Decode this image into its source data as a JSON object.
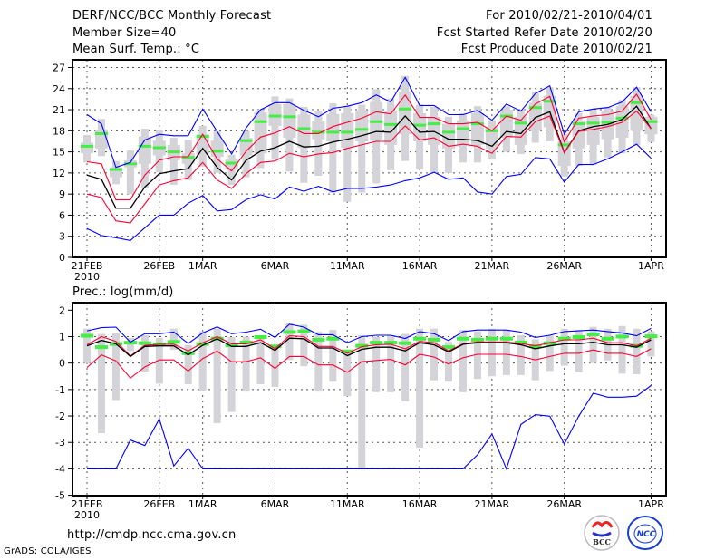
{
  "header": {
    "title": "DERF/NCC/BCC Monthly Forecast",
    "member_size": "Member Size=40",
    "variable": "Mean Surf. Temp.: °C",
    "period": "For 2010/02/21-2010/04/01",
    "started": "Fcst Started Refer Date 2010/02/20",
    "produced": "Fcst Produced Date 2010/02/21"
  },
  "footer": {
    "url": "http://cmdp.ncc.cma.gov.cn",
    "credit": "GrADS: COLA/IGES",
    "logos": [
      "BCC",
      "NCC"
    ]
  },
  "colors": {
    "max_min": "#0000ff",
    "spread": "#ff0033",
    "mean": "#000000",
    "marker": "#44ee44",
    "range": "#d3d3d8"
  },
  "chart_data": [
    {
      "type": "line",
      "title": "Mean Surf. Temp.: °C",
      "ylabel": "",
      "ylim": [
        0,
        27
      ],
      "yticks": [
        "0",
        "3",
        "6",
        "9",
        "12",
        "15",
        "18",
        "21",
        "24",
        "27"
      ],
      "yticks_values": [
        0,
        3,
        6,
        9,
        12,
        15,
        18,
        21,
        24,
        27
      ],
      "xticks": [
        {
          "i": 0,
          "label": "21FEB"
        },
        {
          "i": 5,
          "label": "26FEB"
        },
        {
          "i": 8,
          "label": "1MAR"
        },
        {
          "i": 13,
          "label": "6MAR"
        },
        {
          "i": 18,
          "label": "11MAR"
        },
        {
          "i": 23,
          "label": "16MAR"
        },
        {
          "i": 28,
          "label": "21MAR"
        },
        {
          "i": 33,
          "label": "26MAR"
        },
        {
          "i": 39,
          "label": "1APR"
        }
      ],
      "year_label": "2010",
      "n_days": 40,
      "grid": true,
      "series": [
        {
          "name": "max",
          "color": "#0000ff",
          "values": [
            20.3,
            19.0,
            12.8,
            13.5,
            16.7,
            17.5,
            17.3,
            17.3,
            21.1,
            17.9,
            14.7,
            18.4,
            21.0,
            22.0,
            22.0,
            20.9,
            20.0,
            21.2,
            21.5,
            22.0,
            23.1,
            22.1,
            25.6,
            21.6,
            21.6,
            20.3,
            20.3,
            20.9,
            19.5,
            21.8,
            20.8,
            23.3,
            24.4,
            17.5,
            20.7,
            21.1,
            21.3,
            22.1,
            24.2,
            20.7
          ]
        },
        {
          "name": "upper",
          "color": "#ff0033",
          "values": [
            13.6,
            13.3,
            8.2,
            8.2,
            11.7,
            13.8,
            14.3,
            14.3,
            17.5,
            14.0,
            12.3,
            15.1,
            17.1,
            17.7,
            18.6,
            17.6,
            17.6,
            18.6,
            19.2,
            19.8,
            20.7,
            20.4,
            23.1,
            19.9,
            19.9,
            19.0,
            19.0,
            19.2,
            18.0,
            20.1,
            19.5,
            21.8,
            22.9,
            16.4,
            19.8,
            20.1,
            20.3,
            20.8,
            23.2,
            19.6
          ]
        },
        {
          "name": "mean",
          "color": "#000000",
          "values": [
            11.7,
            11.1,
            7.0,
            7.0,
            10.0,
            11.9,
            12.3,
            12.6,
            15.5,
            12.8,
            11.0,
            13.8,
            15.1,
            15.6,
            16.5,
            15.7,
            15.8,
            16.4,
            16.8,
            17.3,
            17.9,
            17.8,
            20.1,
            17.8,
            17.9,
            16.8,
            16.8,
            16.6,
            15.8,
            17.9,
            17.6,
            19.9,
            20.7,
            14.9,
            18.0,
            18.6,
            18.9,
            19.6,
            21.5,
            18.3
          ]
        },
        {
          "name": "lower",
          "color": "#ff0033",
          "values": [
            9.0,
            8.5,
            5.2,
            4.9,
            7.6,
            10.3,
            10.9,
            11.3,
            13.5,
            11.0,
            9.8,
            11.9,
            13.5,
            13.7,
            14.8,
            14.3,
            14.7,
            14.9,
            15.5,
            16.0,
            16.5,
            16.5,
            18.7,
            16.7,
            17.0,
            15.8,
            16.1,
            15.8,
            14.8,
            17.2,
            17.1,
            19.3,
            20.1,
            14.9,
            17.9,
            18.2,
            18.6,
            19.2,
            20.8,
            18.3
          ]
        },
        {
          "name": "min",
          "color": "#0000ff",
          "values": [
            4.1,
            3.1,
            2.8,
            2.4,
            4.2,
            6.0,
            6.0,
            7.7,
            8.8,
            6.6,
            6.8,
            8.2,
            8.9,
            8.3,
            10.0,
            9.4,
            10.1,
            9.3,
            9.8,
            9.8,
            10.0,
            10.3,
            10.9,
            11.3,
            12.1,
            11.1,
            11.3,
            9.3,
            9.0,
            11.5,
            11.8,
            14.2,
            14.0,
            10.7,
            13.2,
            13.2,
            14.0,
            15.0,
            16.1,
            14.1
          ]
        }
      ],
      "markers": [
        15.8,
        17.6,
        12.5,
        13.3,
        15.8,
        15.6,
        15.0,
        14.2,
        17.2,
        15.1,
        13.4,
        16.6,
        19.3,
        20.1,
        20.0,
        18.3,
        17.8,
        17.8,
        17.8,
        18.2,
        19.3,
        18.9,
        21.1,
        18.8,
        19.0,
        17.8,
        18.3,
        19.0,
        18.0,
        20.1,
        19.1,
        21.3,
        22.2,
        16.0,
        19.0,
        19.1,
        19.2,
        19.8,
        22.0,
        19.3
      ],
      "ranges": [
        [
          13.5,
          17.4,
          14.8,
          16.3
        ],
        [
          14.4,
          19.7,
          15.5,
          18.2
        ],
        [
          10.4,
          13.7,
          11.4,
          12.8
        ],
        [
          9.0,
          15.2,
          12.8,
          13.8
        ],
        [
          9.8,
          18.3,
          13.3,
          17.2
        ],
        [
          12.1,
          18.1,
          14.5,
          16.6
        ],
        [
          10.3,
          17.0,
          13.8,
          16.0
        ],
        [
          11.0,
          16.7,
          13.3,
          14.8
        ],
        [
          12.9,
          18.7,
          14.5,
          17.5
        ],
        [
          12.0,
          17.9,
          14.3,
          16.6
        ],
        [
          10.3,
          14.6,
          12.6,
          14.0
        ],
        [
          11.4,
          18.0,
          14.5,
          17.0
        ],
        [
          12.7,
          21.0,
          14.8,
          20.6
        ],
        [
          13.9,
          22.9,
          18.7,
          21.8
        ],
        [
          12.2,
          22.6,
          17.0,
          21.8
        ],
        [
          10.6,
          21.4,
          15.6,
          20.3
        ],
        [
          11.6,
          20.8,
          16.8,
          19.4
        ],
        [
          9.2,
          21.9,
          16.5,
          20.4
        ],
        [
          7.9,
          21.5,
          15.6,
          20.5
        ],
        [
          9.2,
          21.7,
          16.5,
          20.9
        ],
        [
          10.5,
          23.9,
          16.7,
          22.1
        ],
        [
          12.4,
          22.6,
          16.0,
          20.8
        ],
        [
          13.7,
          25.8,
          17.5,
          23.5
        ],
        [
          12.5,
          21.7,
          16.5,
          20.5
        ],
        [
          12.1,
          21.4,
          16.0,
          20.0
        ],
        [
          12.0,
          20.0,
          15.5,
          19.0
        ],
        [
          13.5,
          20.5,
          16.0,
          19.5
        ],
        [
          13.5,
          21.5,
          16.0,
          20.5
        ],
        [
          13.9,
          19.5,
          15.5,
          18.5
        ],
        [
          15.0,
          21.5,
          17.0,
          21.0
        ],
        [
          14.7,
          21.0,
          16.0,
          20.0
        ],
        [
          16.3,
          23.5,
          18.0,
          22.0
        ],
        [
          16.5,
          24.2,
          18.5,
          23.0
        ],
        [
          11.5,
          17.5,
          13.0,
          16.5
        ],
        [
          13.0,
          20.5,
          15.5,
          19.5
        ],
        [
          13.2,
          21.0,
          16.0,
          20.0
        ],
        [
          14.2,
          21.4,
          16.8,
          20.8
        ],
        [
          14.8,
          22.4,
          17.0,
          21.5
        ],
        [
          16.0,
          24.2,
          18.0,
          23.0
        ],
        [
          16.4,
          20.3,
          17.5,
          20.0
        ]
      ]
    },
    {
      "type": "line",
      "title": "Prec.: log(mm/d)",
      "ylim": [
        -5,
        2
      ],
      "yticks": [
        "-5",
        "-4",
        "-3",
        "-2",
        "-1",
        "0",
        "1",
        "2"
      ],
      "yticks_values": [
        -5,
        -4,
        -3,
        -2,
        -1,
        0,
        1,
        2
      ],
      "xticks": [
        {
          "i": 0,
          "label": "21FEB"
        },
        {
          "i": 5,
          "label": "26FEB"
        },
        {
          "i": 8,
          "label": "1MAR"
        },
        {
          "i": 13,
          "label": "6MAR"
        },
        {
          "i": 18,
          "label": "11MAR"
        },
        {
          "i": 23,
          "label": "16MAR"
        },
        {
          "i": 28,
          "label": "21MAR"
        },
        {
          "i": 33,
          "label": "26MAR"
        },
        {
          "i": 39,
          "label": "1APR"
        }
      ],
      "year_label": "2010",
      "n_days": 40,
      "grid": true,
      "series": [
        {
          "name": "max",
          "color": "#0000ff",
          "values": [
            1.22,
            1.34,
            1.36,
            0.79,
            1.11,
            1.11,
            1.17,
            0.74,
            1.14,
            1.37,
            1.11,
            1.17,
            1.28,
            0.97,
            1.47,
            1.36,
            1.07,
            1.07,
            0.77,
            1.0,
            1.05,
            1.05,
            0.93,
            1.19,
            1.11,
            0.85,
            1.19,
            1.25,
            1.25,
            1.25,
            1.17,
            0.97,
            1.05,
            1.19,
            1.22,
            1.25,
            1.19,
            1.14,
            1.03,
            1.31
          ]
        },
        {
          "name": "upper",
          "color": "#ff0033",
          "values": [
            0.69,
            1.0,
            0.82,
            0.27,
            0.67,
            0.71,
            0.71,
            0.46,
            0.77,
            1.0,
            0.73,
            0.73,
            0.88,
            0.54,
            1.03,
            1.0,
            0.63,
            0.63,
            0.37,
            0.62,
            0.69,
            0.71,
            0.54,
            0.82,
            0.77,
            0.46,
            0.73,
            0.8,
            0.8,
            0.8,
            0.74,
            0.65,
            0.77,
            0.88,
            0.88,
            0.94,
            0.77,
            0.77,
            0.65,
            0.94
          ]
        },
        {
          "name": "mean",
          "color": "#000000",
          "values": [
            0.65,
            0.86,
            0.73,
            0.25,
            0.63,
            0.65,
            0.65,
            0.31,
            0.67,
            0.92,
            0.63,
            0.63,
            0.77,
            0.48,
            0.94,
            0.92,
            0.57,
            0.57,
            0.28,
            0.52,
            0.6,
            0.6,
            0.46,
            0.77,
            0.69,
            0.42,
            0.71,
            0.77,
            0.77,
            0.77,
            0.69,
            0.54,
            0.65,
            0.73,
            0.73,
            0.79,
            0.69,
            0.69,
            0.6,
            0.88
          ]
        },
        {
          "name": "lower",
          "color": "#ff0033",
          "values": [
            -0.17,
            0.31,
            0.08,
            -0.57,
            -0.15,
            0.12,
            0.12,
            -0.3,
            0.17,
            0.45,
            0.05,
            0.05,
            0.2,
            -0.2,
            0.25,
            0.25,
            -0.07,
            -0.07,
            -0.35,
            0.05,
            0.1,
            0.14,
            -0.07,
            0.33,
            0.23,
            -0.04,
            0.2,
            0.33,
            0.33,
            0.33,
            0.25,
            0.12,
            0.25,
            0.37,
            0.37,
            0.5,
            0.37,
            0.37,
            0.25,
            0.54
          ]
        },
        {
          "name": "min",
          "color": "#0000ff",
          "values": [
            -4,
            -4,
            -4,
            -2.91,
            -3.12,
            -2.11,
            -3.89,
            -3.22,
            -4,
            -4,
            -4,
            -4,
            -4,
            -4,
            -4,
            -4,
            -4,
            -4,
            -4,
            -4,
            -4,
            -4,
            -4,
            -4,
            -4,
            -4,
            -4,
            -3.47,
            -2.68,
            -4,
            -2.32,
            -1.95,
            -2.01,
            -3.06,
            -2.01,
            -1.14,
            -1.29,
            -1.29,
            -1.25,
            -0.85
          ]
        }
      ],
      "markers": [
        1.05,
        0.62,
        0.74,
        0.79,
        0.77,
        0.73,
        0.82,
        0.39,
        0.74,
        0.94,
        0.69,
        0.8,
        1.0,
        0.65,
        1.19,
        1.22,
        0.9,
        0.94,
        0.46,
        0.67,
        0.79,
        0.79,
        0.77,
        0.94,
        0.9,
        0.62,
        0.94,
        0.9,
        0.94,
        0.94,
        0.8,
        0.65,
        0.77,
        0.94,
        1.0,
        1.1,
        0.94,
        1.02,
        0.67,
        1.03
      ],
      "ranges": [
        [
          0.0,
          1.3
        ],
        [
          -2.65,
          1.1
        ],
        [
          -1.4,
          1.15
        ],
        [
          0.45,
          0.95
        ],
        [
          -0.32,
          1.05
        ],
        [
          -0.78,
          0.95
        ],
        [
          0.5,
          1.3
        ],
        [
          -0.8,
          0.68
        ],
        [
          -1.05,
          1.2
        ],
        [
          -2.27,
          1.3
        ],
        [
          -1.85,
          0.98
        ],
        [
          -1.08,
          1.0
        ],
        [
          -0.8,
          1.05
        ],
        [
          -0.9,
          0.65
        ],
        [
          0.12,
          1.53
        ],
        [
          -0.12,
          1.45
        ],
        [
          -1.08,
          1.18
        ],
        [
          -0.7,
          1.25
        ],
        [
          -1.25,
          0.5
        ],
        [
          -3.95,
          1.05
        ],
        [
          -1.1,
          1.0
        ],
        [
          -1.1,
          1.05
        ],
        [
          -1.45,
          1.1
        ],
        [
          -3.2,
          1.3
        ],
        [
          -0.65,
          1.3
        ],
        [
          -0.7,
          0.8
        ],
        [
          -1.1,
          1.25
        ],
        [
          -0.6,
          1.2
        ],
        [
          -0.5,
          1.3
        ],
        [
          -0.45,
          1.25
        ],
        [
          -0.45,
          1.05
        ],
        [
          -0.65,
          0.9
        ],
        [
          -0.3,
          1.05
        ],
        [
          -0.1,
          1.3
        ],
        [
          -0.35,
          1.25
        ],
        [
          0.0,
          1.37
        ],
        [
          0.1,
          1.3
        ],
        [
          -0.4,
          1.4
        ],
        [
          -0.42,
          1.3
        ],
        [
          0.25,
          1.2
        ]
      ]
    }
  ]
}
